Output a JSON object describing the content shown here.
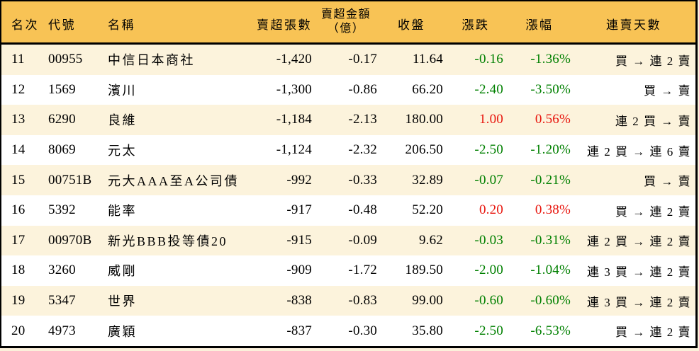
{
  "chart_data": {
    "type": "table",
    "title": "",
    "columns": [
      "名次",
      "代號",
      "名稱",
      "賣超張數",
      "賣超金額（億）",
      "收盤",
      "漲跌",
      "漲幅",
      "連賣天數"
    ],
    "amount_header_lines": [
      "賣超金額",
      "（億）"
    ],
    "rows": [
      [
        "11",
        "00955",
        "中信日本商社",
        "-1,420",
        "-0.17",
        "11.64",
        "-0.16",
        "-1.36%",
        "買 → 連 2 賣"
      ],
      [
        "12",
        "1569",
        "濱川",
        "-1,300",
        "-0.86",
        "66.20",
        "-2.40",
        "-3.50%",
        "買 → 賣"
      ],
      [
        "13",
        "6290",
        "良維",
        "-1,184",
        "-2.13",
        "180.00",
        "1.00",
        "0.56%",
        "連 2 買 → 賣"
      ],
      [
        "14",
        "8069",
        "元太",
        "-1,124",
        "-2.32",
        "206.50",
        "-2.50",
        "-1.20%",
        "連 2 買 → 連 6 賣"
      ],
      [
        "15",
        "00751B",
        "元大AAA至A公司債",
        "-992",
        "-0.33",
        "32.89",
        "-0.07",
        "-0.21%",
        "買 → 賣"
      ],
      [
        "16",
        "5392",
        "能率",
        "-917",
        "-0.48",
        "52.20",
        "0.20",
        "0.38%",
        "買 → 連 2 賣"
      ],
      [
        "17",
        "00970B",
        "新光BBB投等債20",
        "-915",
        "-0.09",
        "9.62",
        "-0.03",
        "-0.31%",
        "連 2 買 → 連 2 賣"
      ],
      [
        "18",
        "3260",
        "威剛",
        "-909",
        "-1.72",
        "189.50",
        "-2.00",
        "-1.04%",
        "連 3 買 → 連 2 賣"
      ],
      [
        "19",
        "5347",
        "世界",
        "-838",
        "-0.83",
        "99.00",
        "-0.60",
        "-0.60%",
        "連 3 買 → 連 2 賣"
      ],
      [
        "20",
        "4973",
        "廣穎",
        "-837",
        "-0.30",
        "35.80",
        "-2.50",
        "-6.53%",
        "買 → 連 2 賣"
      ]
    ],
    "layout": {
      "header_position": "top",
      "zebra_striping": true,
      "first_row_striped": true,
      "negative_color_rule": "green for negative change, red for positive change"
    }
  },
  "colors": {
    "header_bg": "#F8C355",
    "row_stripe": "#FCF3DC",
    "row_plain": "#FFFFFF",
    "border": "#000000",
    "up_red": "#E8150D",
    "down_green": "#008000",
    "text": "#000000",
    "page_bg": "#FBF0DA"
  }
}
